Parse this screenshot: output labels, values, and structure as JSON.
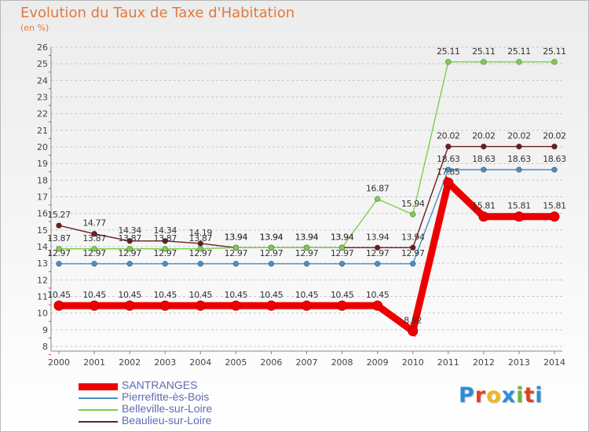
{
  "header": {
    "title": "Evolution du Taux de Taxe d'Habitation",
    "subtitle": "(en %)"
  },
  "brand": {
    "logo_letters": [
      "P",
      "r",
      "o",
      "x",
      "i",
      "t",
      "i"
    ],
    "logo_colors": [
      "#2a8ed6",
      "#e0431f",
      "#f2b61f",
      "#2a8ed6",
      "#6db33f",
      "#e0431f",
      "#2a8ed6"
    ]
  },
  "chart_data": {
    "type": "line",
    "title": "Evolution du Taux de Taxe d'Habitation",
    "subtitle": "(en %)",
    "x": [
      "2000",
      "2001",
      "2002",
      "2003",
      "2004",
      "2005",
      "2006",
      "2007",
      "2008",
      "2009",
      "2010",
      "2011",
      "2012",
      "2013",
      "2014"
    ],
    "ylim": [
      8,
      26
    ],
    "yticks": [
      "8",
      "9",
      "10",
      "11",
      "12",
      "13",
      "14",
      "15",
      "16",
      "17",
      "18",
      "19",
      "20",
      "21",
      "22",
      "23",
      "24",
      "25",
      "26"
    ],
    "grid": "horizontal dashed",
    "legend_position": "bottom-left",
    "series": [
      {
        "name": "SANTRANGES",
        "color": "#ee0000",
        "values": [
          10.45,
          10.45,
          10.45,
          10.45,
          10.45,
          10.45,
          10.45,
          10.45,
          10.45,
          10.45,
          8.92,
          17.85,
          15.81,
          15.81,
          15.81
        ],
        "labels": [
          "10.45",
          "10.45",
          "10.45",
          "10.45",
          "10.45",
          "10.45",
          "10.45",
          "10.45",
          "10.45",
          "10.45",
          "8.92",
          "17.85",
          "15.81",
          "15.81",
          "15.81"
        ]
      },
      {
        "name": "Pierrefitte-ès-Bois",
        "color": "#4a8fc8",
        "values": [
          12.97,
          12.97,
          12.97,
          12.97,
          12.97,
          12.97,
          12.97,
          12.97,
          12.97,
          12.97,
          12.97,
          18.63,
          18.63,
          18.63,
          18.63
        ],
        "labels": [
          "12.97",
          "12.97",
          "12.97",
          "12.97",
          "12.97",
          "12.97",
          "12.97",
          "12.97",
          "12.97",
          "12.97",
          "12.97",
          "18.63",
          "18.63",
          "18.63",
          "18.63"
        ]
      },
      {
        "name": "Belleville-sur-Loire",
        "color": "#7ccf4e",
        "values": [
          13.87,
          13.87,
          13.87,
          13.87,
          13.87,
          13.94,
          13.94,
          13.94,
          13.94,
          16.87,
          15.94,
          25.11,
          25.11,
          25.11,
          25.11
        ],
        "labels": [
          "13.87",
          "13.87",
          "13.87",
          "13.87",
          "13.87",
          "13.94",
          "13.94",
          "13.94",
          "13.94",
          "16.87",
          "15.94",
          "25.11",
          "25.11",
          "25.11",
          "25.11"
        ]
      },
      {
        "name": "Beaulieu-sur-Loire",
        "color": "#6b1e22",
        "values": [
          15.27,
          14.77,
          14.34,
          14.34,
          14.19,
          13.94,
          13.94,
          13.94,
          13.94,
          13.94,
          13.94,
          20.02,
          20.02,
          20.02,
          20.02
        ],
        "labels": [
          "15.27",
          "14.77",
          "14.34",
          "14.34",
          "14.19",
          "13.94",
          "13.94",
          "13.94",
          "13.94",
          "13.94",
          "13.94",
          "20.02",
          "20.02",
          "20.02",
          "20.02"
        ]
      }
    ]
  }
}
